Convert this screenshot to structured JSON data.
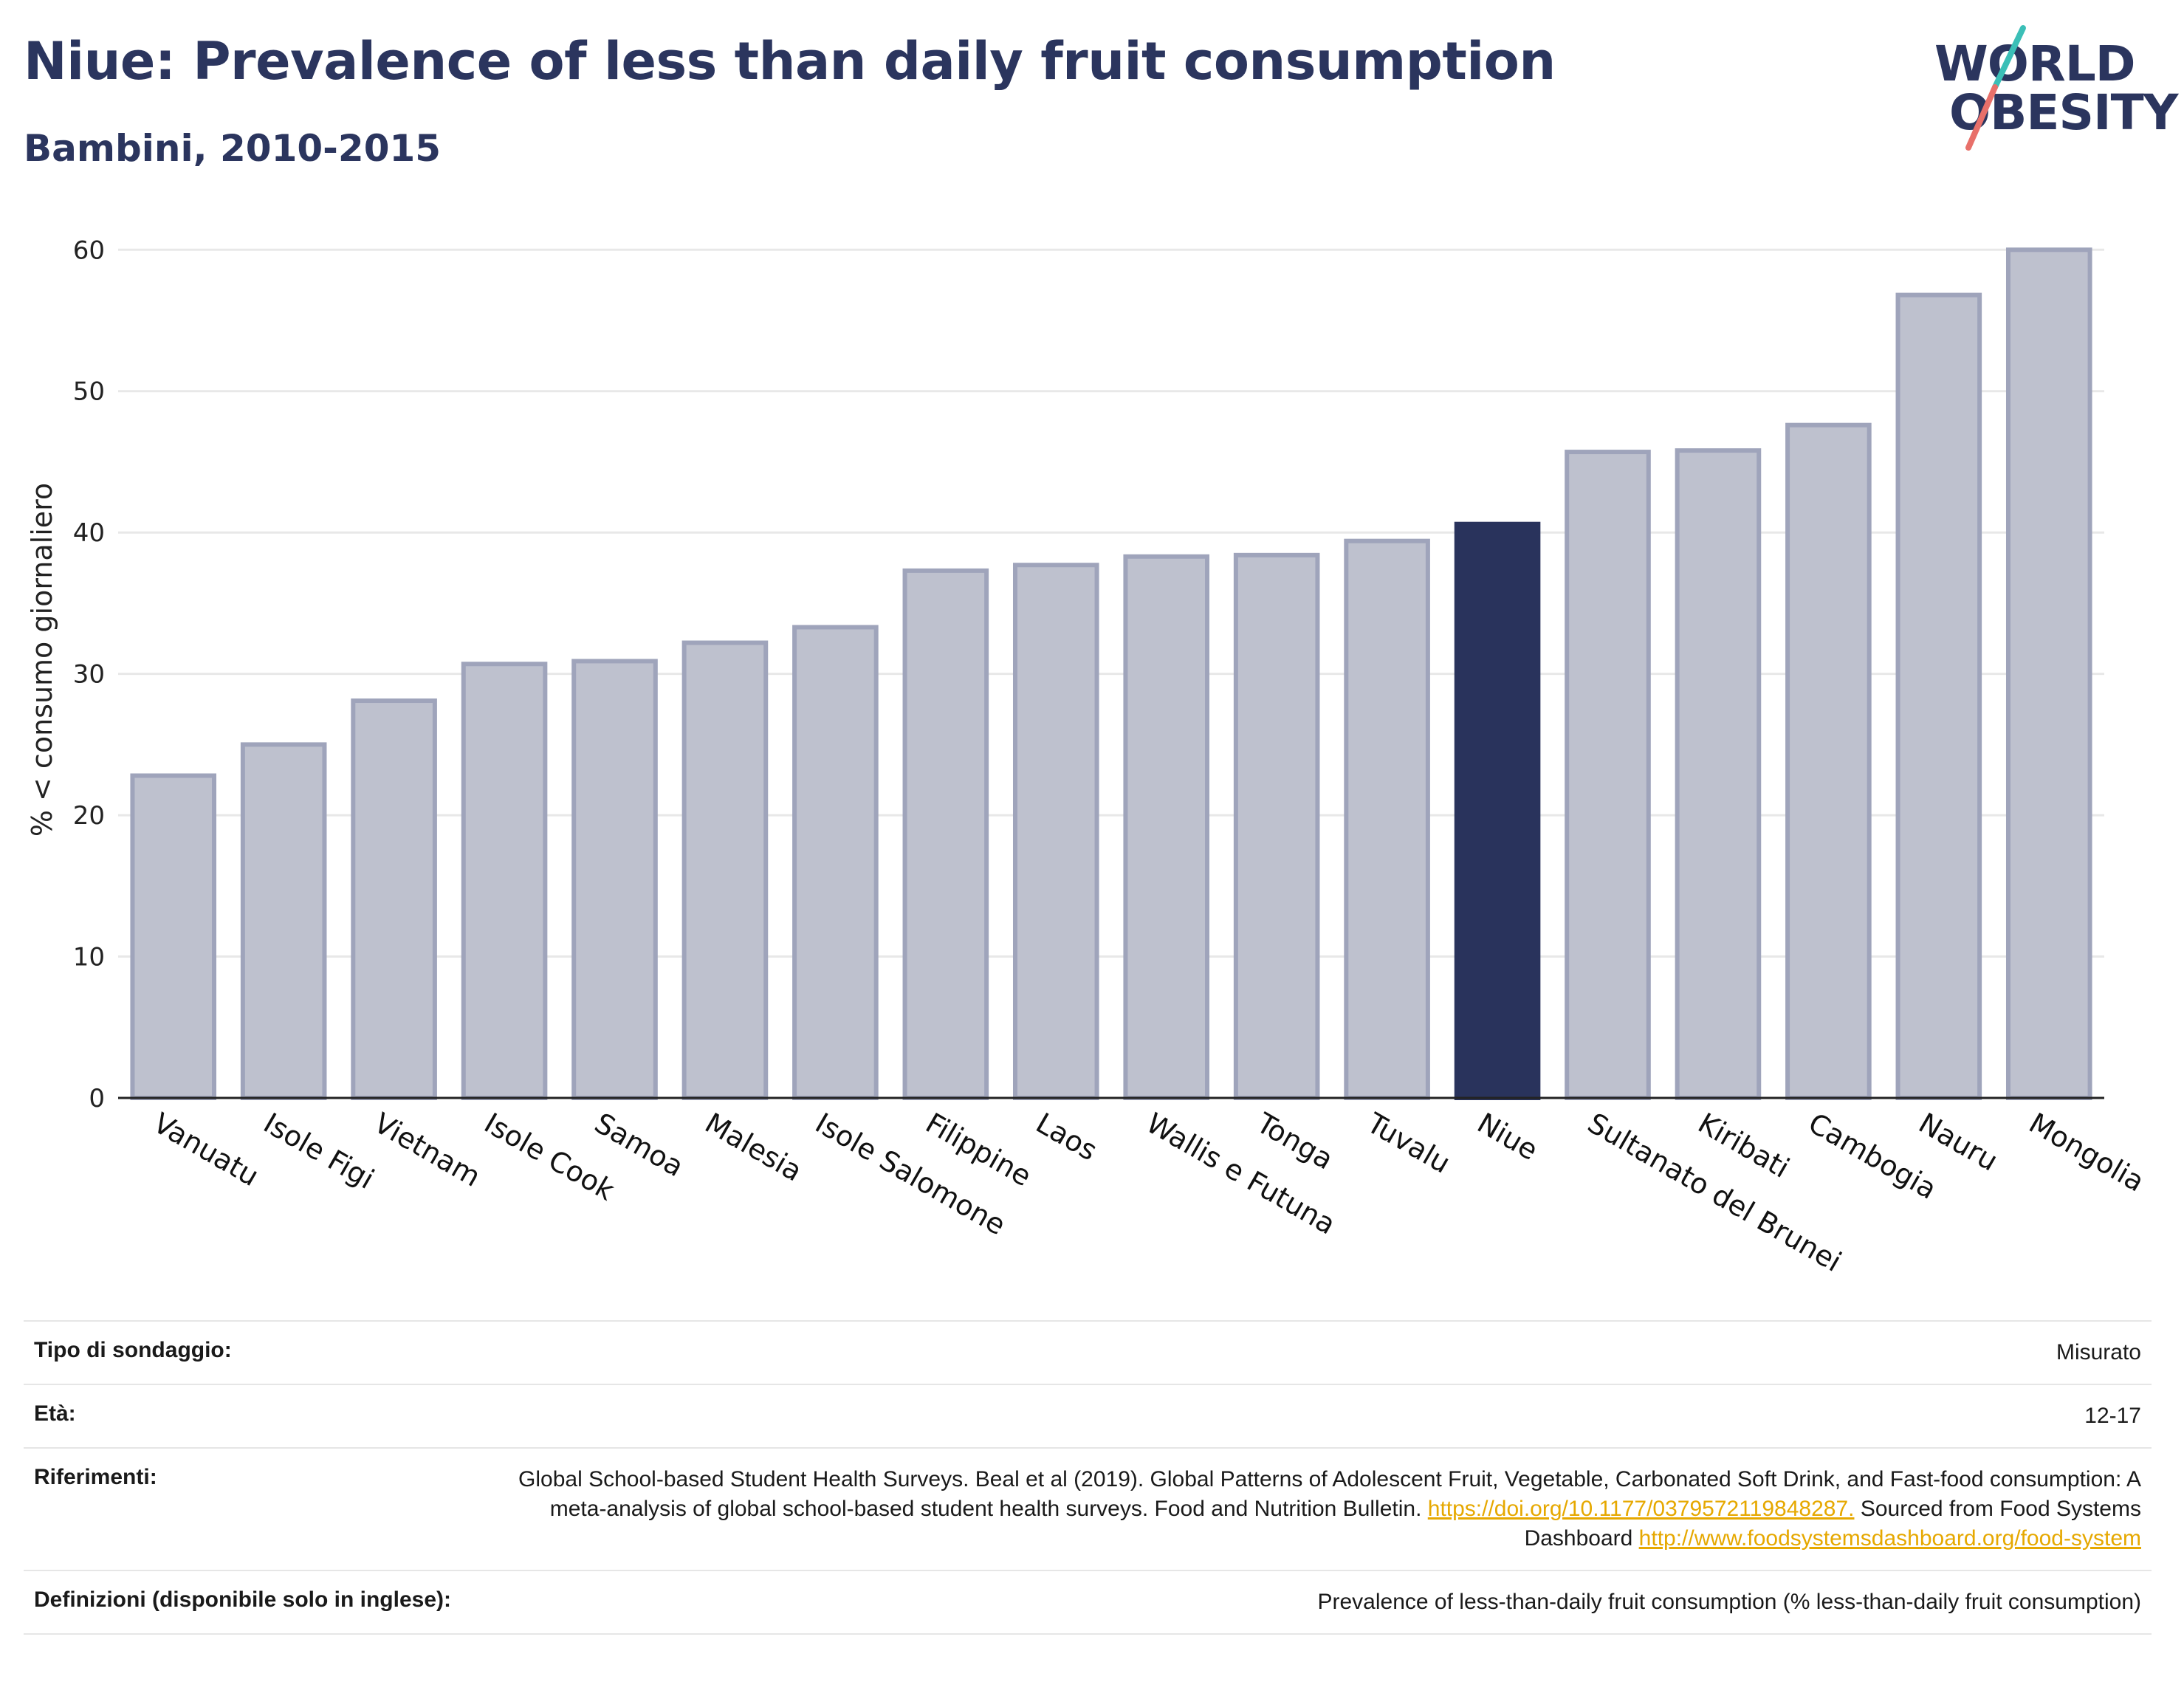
{
  "header": {
    "title": "Niue: Prevalence of less than daily fruit consumption",
    "subtitle": "Bambini, 2010-2015"
  },
  "logo": {
    "line1": "WORLD",
    "line2": "OBESITY",
    "name": "world-obesity-logo"
  },
  "chart_data": {
    "type": "bar",
    "title": "Niue: Prevalence of less than daily fruit consumption",
    "subtitle": "Bambini, 2010-2015",
    "xlabel": "",
    "ylabel": "% < consumo giornaliero",
    "ylim": [
      0,
      62
    ],
    "yticks": [
      0,
      10,
      20,
      30,
      40,
      50,
      60
    ],
    "grid": true,
    "categories": [
      "Vanuatu",
      "Isole Figi",
      "Vietnam",
      "Isole Cook",
      "Samoa",
      "Malesia",
      "Isole Salomone",
      "Filippine",
      "Laos",
      "Wallis e Futuna",
      "Tonga",
      "Tuvalu",
      "Niue",
      "Sultanato del Brunei",
      "Kiribati",
      "Cambogia",
      "Nauru",
      "Mongolia"
    ],
    "values": [
      22.8,
      25.0,
      28.1,
      30.7,
      30.9,
      32.2,
      33.3,
      37.3,
      37.7,
      38.3,
      38.4,
      39.4,
      40.6,
      45.7,
      45.8,
      47.6,
      56.8,
      60.0
    ],
    "highlight": "Niue",
    "colors": {
      "highlight": "#29335c",
      "other_fill": "#bec1ce",
      "other_stroke": "#9fa4bb"
    }
  },
  "info": {
    "survey_label": "Tipo di sondaggio:",
    "survey_value": "Misurato",
    "age_label": "Età:",
    "age_value": "12-17",
    "refs_label": "Riferimenti:",
    "refs_text1": "Global School-based Student Health Surveys. Beal et al (2019). Global Patterns of Adolescent Fruit, Vegetable, Carbonated Soft Drink, and Fast-food consumption: A meta-analysis of global school-based student health surveys. Food and Nutrition Bulletin.",
    "refs_link1": "https://doi.org/10.1177/0379572119848287.",
    "refs_text2": "Sourced from Food Systems Dashboard",
    "refs_link2": "http://www.foodsystemsdashboard.org/food-system",
    "def_label": "Definizioni (disponibile solo in inglese):",
    "def_value": "Prevalence of less-than-daily fruit consumption (% less-than-daily fruit consumption)"
  }
}
